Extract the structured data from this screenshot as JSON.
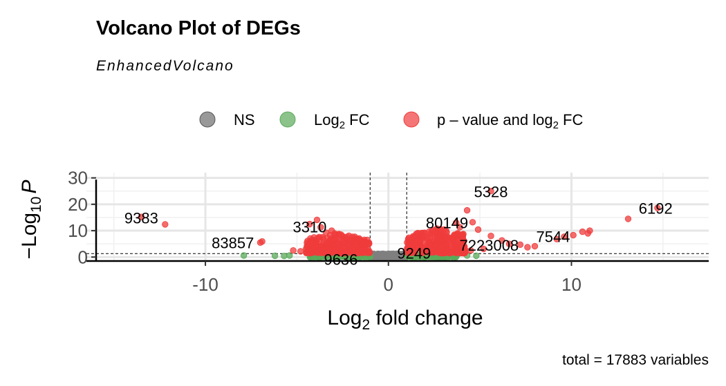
{
  "chart_data": {
    "type": "scatter",
    "title": "Volcano Plot of DEGs",
    "subtitle": "EnhancedVolcano",
    "xlabel_base": "Log",
    "xlabel_sub": "2",
    "xlabel_rest": " fold change",
    "ylabel_pre": "−Log",
    "ylabel_sub": "10",
    "ylabel_var": "P",
    "caption": "total = 17883 variables",
    "xlim": [
      -16.5,
      17.5
    ],
    "ylim": [
      -1.5,
      32
    ],
    "x_ticks": [
      -10,
      0,
      10
    ],
    "x_tick_labels": [
      "-10",
      "0",
      "10"
    ],
    "y_ticks": [
      0,
      10,
      20,
      30
    ],
    "y_tick_labels": [
      "0",
      "10",
      "20",
      "30"
    ],
    "fc_cutoff": 1,
    "p_cutoff_log10": 1.3,
    "grid": true,
    "legend_position": "top",
    "legend": [
      {
        "key": "ns",
        "label": "NS",
        "color": "#808080"
      },
      {
        "key": "fc",
        "label_base": "Log",
        "label_sub": "2",
        "label_rest": " FC",
        "color": "#5aaa5a"
      },
      {
        "key": "pfc",
        "label_pre": "p – value and log",
        "label_sub": "2",
        "label_rest": " FC",
        "color": "#f03c3c"
      }
    ],
    "labels": [
      {
        "text": "5328",
        "x": 5.6,
        "y": 24.8
      },
      {
        "text": "6192",
        "x": 14.6,
        "y": 18.5
      },
      {
        "text": "9383",
        "x": -13.5,
        "y": 14.8
      },
      {
        "text": "3310",
        "x": -4.3,
        "y": 11.5
      },
      {
        "text": "80149",
        "x": 3.2,
        "y": 13.0
      },
      {
        "text": "7544",
        "x": 9.0,
        "y": 7.8
      },
      {
        "text": "83857",
        "x": -8.5,
        "y": 5.5
      },
      {
        "text": "7223008",
        "x": 5.5,
        "y": 4.5
      },
      {
        "text": "9636",
        "x": -2.6,
        "y": -0.8
      },
      {
        "text": "9249",
        "x": 1.4,
        "y": 1.5
      }
    ],
    "series": [
      {
        "key": "pfc",
        "points": [
          [
            -13.5,
            15.2
          ],
          [
            -12.2,
            12.4
          ],
          [
            -7.0,
            5.5
          ],
          [
            -6.9,
            5.9
          ],
          [
            -5.2,
            2.5
          ],
          [
            -4.8,
            2.2
          ],
          [
            -4.4,
            4.0
          ],
          [
            -4.3,
            12.5
          ],
          [
            -3.9,
            14.1
          ],
          [
            -3.7,
            11.3
          ],
          [
            -3.4,
            9.2
          ],
          [
            -3.1,
            10.0
          ],
          [
            5.6,
            25.0
          ],
          [
            4.3,
            17.7
          ],
          [
            4.6,
            13.2
          ],
          [
            3.7,
            13.0
          ],
          [
            3.9,
            11.3
          ],
          [
            4.9,
            10.4
          ],
          [
            5.6,
            8.0
          ],
          [
            6.2,
            6.3
          ],
          [
            6.6,
            5.0
          ],
          [
            7.2,
            4.7
          ],
          [
            7.6,
            3.7
          ],
          [
            8.0,
            4.1
          ],
          [
            5.2,
            3.1
          ],
          [
            4.5,
            2.5
          ],
          [
            9.2,
            6.8
          ],
          [
            9.6,
            7.7
          ],
          [
            10.1,
            8.3
          ],
          [
            10.6,
            9.6
          ],
          [
            10.9,
            9.0
          ],
          [
            11.0,
            10.0
          ],
          [
            13.1,
            14.5
          ],
          [
            14.7,
            18.6
          ]
        ],
        "cloud": [
          {
            "x_min": -4.5,
            "x_max": -1.0,
            "y_min": 1.5,
            "y_max": 9.0,
            "n": 260
          },
          {
            "x_min": 1.0,
            "x_max": 4.2,
            "y_min": 1.5,
            "y_max": 11.0,
            "n": 300
          }
        ]
      },
      {
        "key": "fc",
        "points": [
          [
            -7.9,
            0.6
          ],
          [
            -6.2,
            0.5
          ],
          [
            -5.4,
            0.6
          ],
          [
            -5.7,
            0.4
          ],
          [
            3.5,
            0.6
          ],
          [
            4.3,
            0.6
          ],
          [
            4.8,
            0.5
          ],
          [
            3.2,
            0.3
          ],
          [
            -3.5,
            0.7
          ],
          [
            -4.0,
            0.5
          ]
        ],
        "cloud": [
          {
            "x_min": -4.3,
            "x_max": -1.0,
            "y_min": 0.0,
            "y_max": 1.3,
            "n": 150
          },
          {
            "x_min": 1.0,
            "x_max": 3.8,
            "y_min": 0.0,
            "y_max": 1.3,
            "n": 150
          }
        ]
      },
      {
        "key": "ns",
        "points": [],
        "cloud": [
          {
            "x_min": -1.0,
            "x_max": 1.0,
            "y_min": -0.4,
            "y_max": 1.4,
            "n": 600
          }
        ]
      }
    ]
  }
}
